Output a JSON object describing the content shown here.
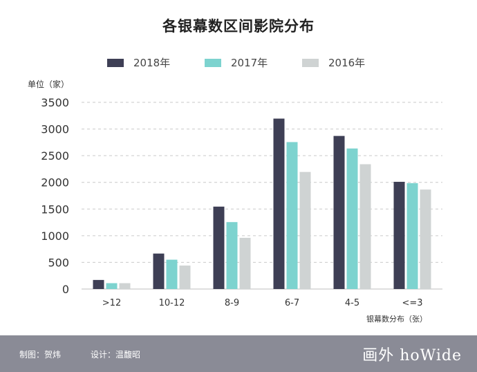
{
  "chart_data": {
    "type": "bar",
    "title": "各银幕数区间影院分布",
    "ylabel": "单位（家）",
    "xlabel": "银幕数分布（张）",
    "categories": [
      ">12",
      "10-12",
      "8-9",
      "6-7",
      "4-5",
      "<=3"
    ],
    "series": [
      {
        "name": "2018年",
        "color": "#3e3f55",
        "values": [
          170,
          665,
          1545,
          3195,
          2870,
          2010
        ]
      },
      {
        "name": "2017年",
        "color": "#7dd3cf",
        "values": [
          110,
          550,
          1255,
          2755,
          2635,
          1985
        ]
      },
      {
        "name": "2016年",
        "color": "#cfd3d3",
        "values": [
          110,
          440,
          960,
          2195,
          2340,
          1865
        ]
      }
    ],
    "ylim": [
      0,
      3500
    ],
    "yticks": [
      0,
      500,
      1000,
      1500,
      2000,
      2500,
      3000,
      3500
    ],
    "grid": true,
    "legend_position": "top-center"
  },
  "footer": {
    "chart_credit": "制图：贺炜",
    "design_credit": "设计：温馥昭",
    "logo": "画外 hoWide",
    "background": "#8a8b96"
  }
}
